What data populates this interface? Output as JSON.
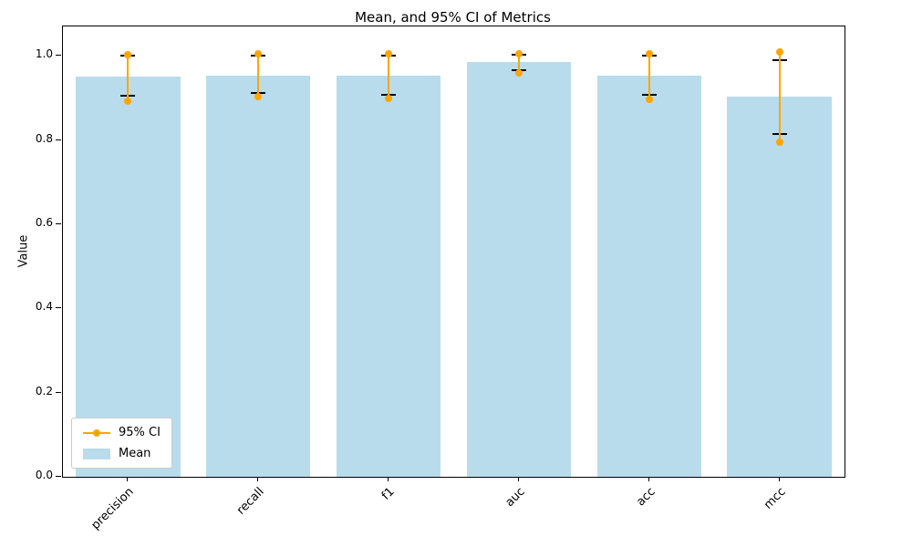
{
  "chart_data": {
    "type": "bar",
    "title": "Mean, and 95% CI of Metrics",
    "xlabel": "",
    "ylabel": "Value",
    "categories": [
      "precision",
      "recall",
      "f1",
      "auc",
      "acc",
      "mcc"
    ],
    "series": [
      {
        "name": "Mean",
        "type": "bar",
        "color": "#b8dcec",
        "values": [
          0.95,
          0.954,
          0.952,
          0.985,
          0.952,
          0.903
        ]
      },
      {
        "name": "95% CI",
        "type": "errorline",
        "color": "#FFA500",
        "low": [
          0.893,
          0.903,
          0.898,
          0.96,
          0.897,
          0.795
        ],
        "high": [
          1.003,
          1.005,
          1.004,
          1.006,
          1.004,
          1.01
        ]
      },
      {
        "name": "errorbar-caps",
        "type": "caps",
        "color": "#000000",
        "low": [
          0.905,
          0.912,
          0.908,
          0.967,
          0.908,
          0.815
        ],
        "high": [
          1.0,
          1.0,
          1.0,
          1.002,
          1.0,
          0.99
        ]
      }
    ],
    "yticks": [
      0.0,
      0.2,
      0.4,
      0.6,
      0.8,
      1.0
    ],
    "ylim": [
      0,
      1.07
    ],
    "bar_width_fraction": 0.8,
    "legend_position": "lower left",
    "grid": false
  },
  "legend": {
    "ci_label": "95% CI",
    "mean_label": "Mean"
  }
}
